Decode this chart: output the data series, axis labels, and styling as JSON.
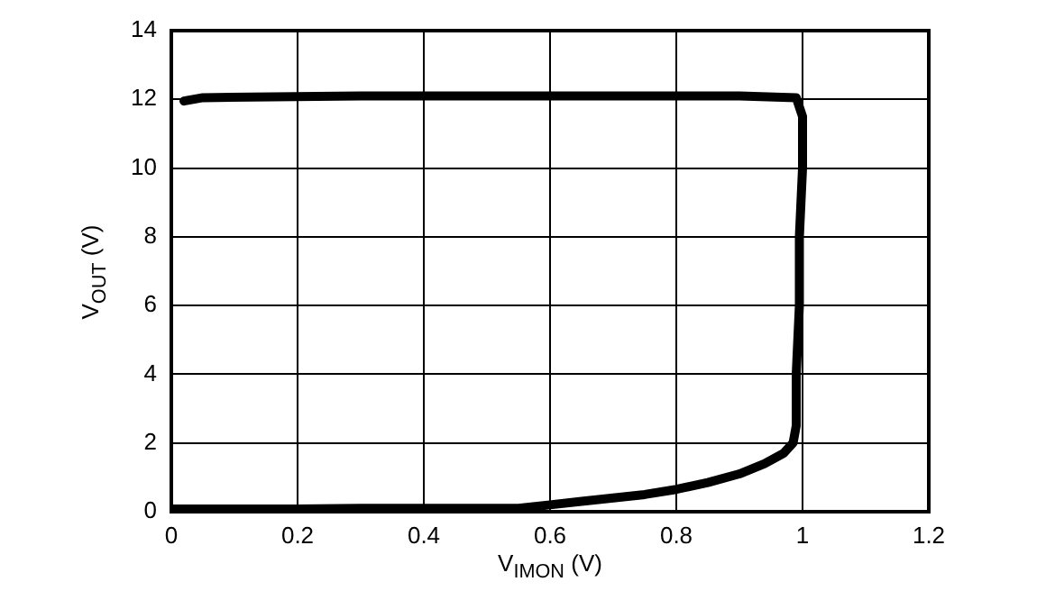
{
  "chart_data": {
    "type": "line",
    "xlabel": "V$_{IMON}$ (V)",
    "ylabel": "V$_{OUT}$ (V)",
    "series": [
      {
        "color": "#000000",
        "x": [
          0,
          0.1,
          0.2,
          0.3,
          0.4,
          0.5,
          0.55,
          0.6,
          0.65,
          0.7,
          0.75,
          0.8,
          0.85,
          0.9,
          0.94,
          0.97,
          0.985,
          0.99,
          0.99,
          0.995,
          0.995,
          1,
          1,
          0.99,
          0.9,
          0.6,
          0.3,
          0.05,
          0.02
        ],
        "values": [
          0.08,
          0.08,
          0.08,
          0.1,
          0.1,
          0.1,
          0.1,
          0.2,
          0.3,
          0.4,
          0.5,
          0.65,
          0.85,
          1.1,
          1.4,
          1.7,
          2,
          2.5,
          4,
          6,
          8,
          10,
          11.5,
          12.05,
          12.1,
          12.1,
          12.1,
          12.05,
          11.95
        ]
      }
    ],
    "xlim": [
      0,
      1.2
    ],
    "xticks": [
      0,
      0.2,
      0.4,
      0.6,
      0.8,
      1,
      1.2
    ],
    "ylim": [
      0,
      14
    ],
    "yticks": [
      0,
      2,
      4,
      6,
      8,
      10,
      12,
      14
    ],
    "grid": true,
    "legend": false,
    "marker": "none",
    "line_style": "solid"
  }
}
